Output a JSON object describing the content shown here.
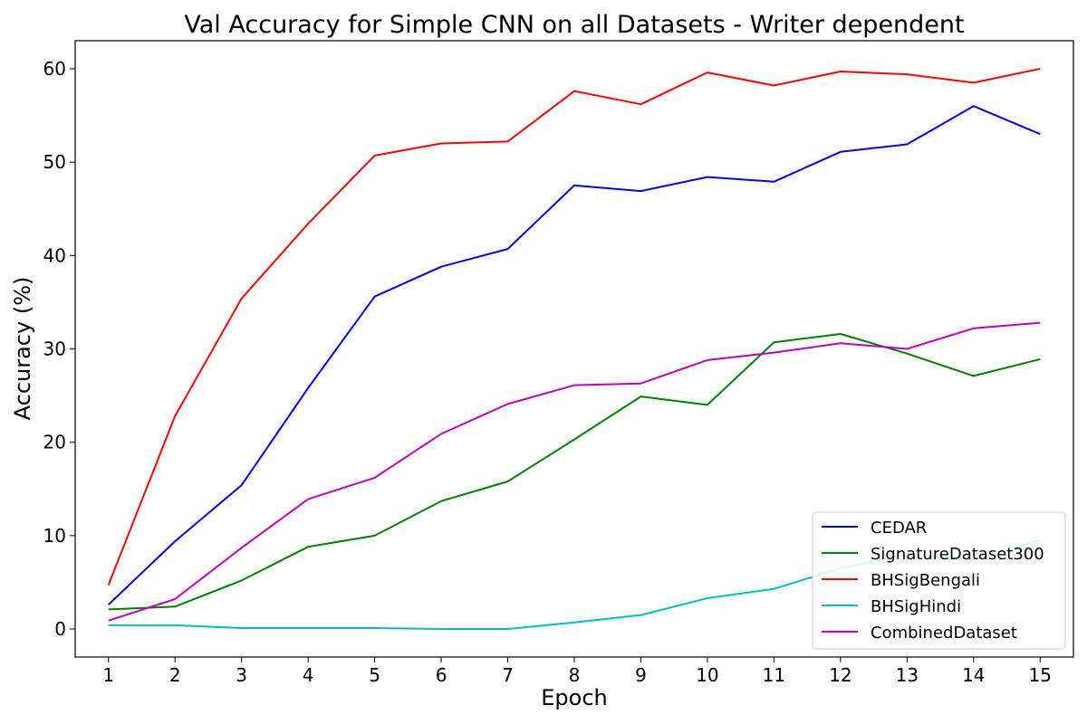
{
  "chart_data": {
    "type": "line",
    "title": "Val Accuracy for Simple CNN on all Datasets - Writer dependent",
    "xlabel": "Epoch",
    "ylabel": "Accuracy (%)",
    "x": [
      1,
      2,
      3,
      4,
      5,
      6,
      7,
      8,
      9,
      10,
      11,
      12,
      13,
      14,
      15
    ],
    "xlim": [
      0.5,
      15.5
    ],
    "ylim": [
      -3,
      63
    ],
    "yticks": [
      0,
      10,
      20,
      30,
      40,
      50,
      60
    ],
    "grid": false,
    "legend_position": "lower-right",
    "series": [
      {
        "name": "CEDAR",
        "color": "#0000ff",
        "values": [
          2.6,
          9.4,
          15.4,
          25.8,
          35.6,
          38.8,
          40.7,
          47.5,
          46.9,
          48.4,
          47.9,
          51.1,
          51.9,
          56.0,
          53.0
        ]
      },
      {
        "name": "SignatureDataset300",
        "color": "#008000",
        "values": [
          2.1,
          2.4,
          5.2,
          8.8,
          10.0,
          13.7,
          15.8,
          20.3,
          24.9,
          24.0,
          30.7,
          31.6,
          29.5,
          27.1,
          28.9
        ]
      },
      {
        "name": "BHSigBengali",
        "color": "#ff0000",
        "values": [
          4.7,
          22.8,
          35.4,
          43.4,
          50.7,
          52.0,
          52.2,
          57.6,
          56.2,
          59.6,
          58.2,
          59.7,
          59.4,
          58.5,
          60.0
        ]
      },
      {
        "name": "BHSigHindi",
        "color": "#00bfbf",
        "values": [
          0.4,
          0.4,
          0.1,
          0.1,
          0.1,
          0.0,
          0.0,
          0.7,
          1.5,
          3.3,
          4.3,
          6.5,
          8.0,
          7.5,
          9.5
        ]
      },
      {
        "name": "CombinedDataset",
        "color": "#bf00bf",
        "values": [
          0.9,
          3.2,
          8.7,
          13.9,
          16.2,
          20.9,
          24.1,
          26.1,
          26.3,
          28.8,
          29.6,
          30.6,
          30.0,
          32.2,
          32.8
        ]
      }
    ]
  }
}
